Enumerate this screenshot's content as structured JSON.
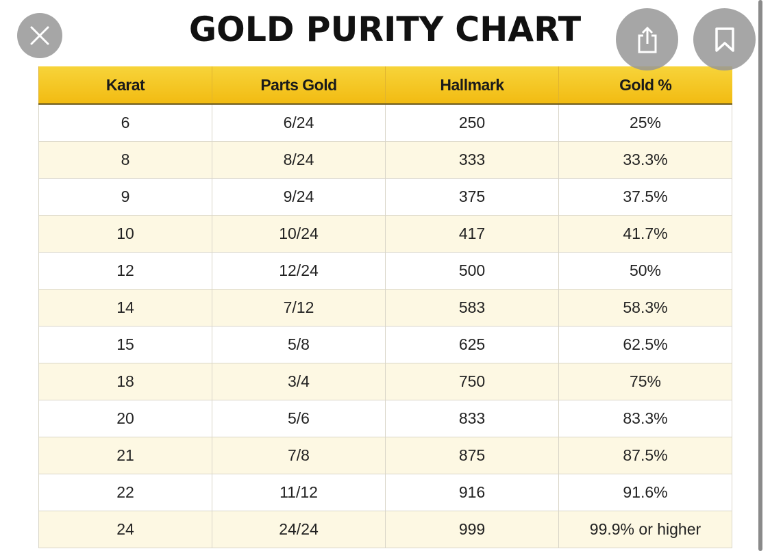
{
  "title": "GOLD PURITY CHART",
  "icons": {
    "close": "close-icon",
    "share": "share-icon",
    "bookmark": "bookmark-icon"
  },
  "colors": {
    "header_gold": "#f2bb12",
    "alt_row": "#fdf8e3"
  },
  "table": {
    "headers": [
      "Karat",
      "Parts Gold",
      "Hallmark",
      "Gold %"
    ],
    "rows": [
      [
        "6",
        "6/24",
        "250",
        "25%"
      ],
      [
        "8",
        "8/24",
        "333",
        "33.3%"
      ],
      [
        "9",
        "9/24",
        "375",
        "37.5%"
      ],
      [
        "10",
        "10/24",
        "417",
        "41.7%"
      ],
      [
        "12",
        "12/24",
        "500",
        "50%"
      ],
      [
        "14",
        "7/12",
        "583",
        "58.3%"
      ],
      [
        "15",
        "5/8",
        "625",
        "62.5%"
      ],
      [
        "18",
        "3/4",
        "750",
        "75%"
      ],
      [
        "20",
        "5/6",
        "833",
        "83.3%"
      ],
      [
        "21",
        "7/8",
        "875",
        "87.5%"
      ],
      [
        "22",
        "11/12",
        "916",
        "91.6%"
      ],
      [
        "24",
        "24/24",
        "999",
        "99.9% or higher"
      ]
    ]
  }
}
